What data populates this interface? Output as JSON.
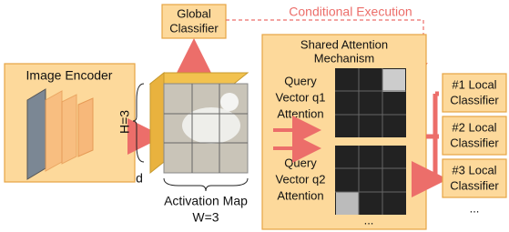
{
  "global_classifier": {
    "label": [
      "Global",
      "Classifier"
    ]
  },
  "conditional_execution": "Conditional Execution",
  "image_encoder": "Image Encoder",
  "activation_map": {
    "height": "H=3",
    "depth": "d",
    "label": "Activation Map",
    "width": "W=3"
  },
  "attention": {
    "title": [
      "Shared Attention",
      "Mechanism"
    ],
    "queries": [
      [
        "Query",
        "Vector q1",
        "Attention"
      ],
      [
        "Query",
        "Vector q2",
        "Attention"
      ]
    ],
    "more": "..."
  },
  "local_classifiers": {
    "items": [
      [
        "#1 Local",
        "Classifier"
      ],
      [
        "#2 Local",
        "Classifier"
      ],
      [
        "#3 Local",
        "Classifier"
      ]
    ],
    "more": "..."
  }
}
